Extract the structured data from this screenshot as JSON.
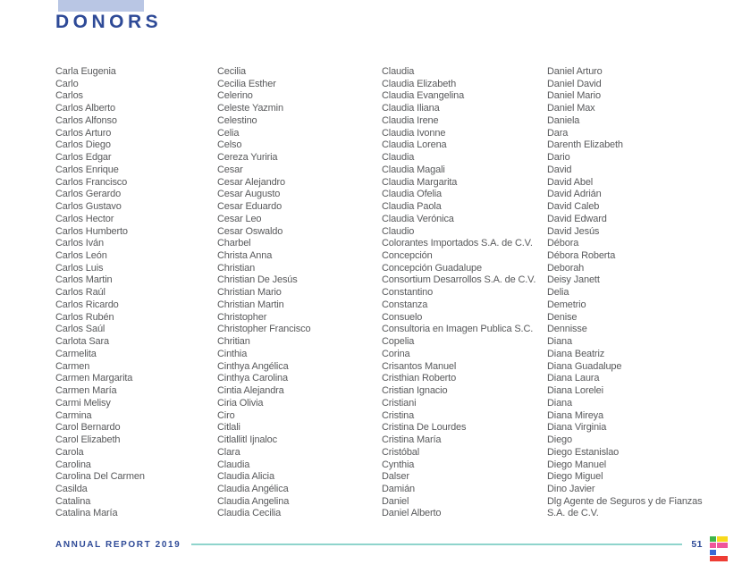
{
  "header": {
    "title": "DONORS",
    "title_color": "#2e4a97",
    "accent_bar_color": "#b9c6e4"
  },
  "text_color": "#58595b",
  "columns": [
    {
      "names": [
        "Carla Eugenia",
        "Carlo",
        "Carlos",
        "Carlos Alberto",
        "Carlos Alfonso",
        "Carlos Arturo",
        "Carlos Diego",
        "Carlos Edgar",
        "Carlos Enrique",
        "Carlos Francisco",
        "Carlos Gerardo",
        "Carlos Gustavo",
        "Carlos Hector",
        "Carlos Humberto",
        "Carlos Iván",
        "Carlos León",
        "Carlos Luis",
        "Carlos Martin",
        "Carlos Raúl",
        "Carlos Ricardo",
        "Carlos Rubén",
        "Carlos Saúl",
        "Carlota Sara",
        "Carmelita",
        "Carmen",
        "Carmen Margarita",
        "Carmen María",
        "Carmi Melisy",
        "Carmina",
        "Carol Bernardo",
        "Carol Elizabeth",
        "Carola",
        "Carolina",
        "Carolina Del Carmen",
        "Casilda",
        "Catalina",
        "Catalina María"
      ]
    },
    {
      "names": [
        "Cecilia",
        "Cecilia Esther",
        "Celerino",
        "Celeste Yazmin",
        "Celestino",
        "Celia",
        "Celso",
        "Cereza Yuriria",
        "Cesar",
        "Cesar Alejandro",
        "Cesar Augusto",
        "Cesar Eduardo",
        "Cesar Leo",
        "Cesar Oswaldo",
        "Charbel",
        "Christa Anna",
        "Christian",
        "Christian De Jesús",
        "Christian Mario",
        "Christian Martin",
        "Christopher",
        "Christopher Francisco",
        "Chritian",
        "Cinthia",
        "Cinthya Angélica",
        "Cinthya Carolina",
        "Cintia Alejandra",
        "Ciria Olivia",
        "Ciro",
        "Citlali",
        "Citlallitl Ijnaloc",
        "Clara",
        "Claudia",
        "Claudia Alicia",
        "Claudia Angélica",
        "Claudia Angelina",
        "Claudia Cecilia"
      ]
    },
    {
      "names": [
        "Claudia",
        "Claudia Elizabeth",
        "Claudia Evangelina",
        "Claudia Iliana",
        "Claudia Irene",
        "Claudia Ivonne",
        "Claudia Lorena",
        "Claudia",
        "Claudia Magali",
        "Claudia Margarita",
        "Claudia Ofelia",
        "Claudia Paola",
        "Claudia Verónica",
        "Claudio",
        "Colorantes Importados S.A. de C.V.",
        "Concepción",
        "Concepción Guadalupe",
        "Consortium Desarrollos S.A. de C.V.",
        "Constantino",
        "Constanza",
        "Consuelo",
        "Consultoria en Imagen Publica S.C.",
        "Copelia",
        "Corina",
        "Crisantos Manuel",
        "Cristhian Roberto",
        "Cristian Ignacio",
        "Cristiani",
        "Cristina",
        "Cristina De Lourdes",
        "Cristina María",
        "Cristóbal",
        "Cynthia",
        "Dalser",
        "Damián",
        "Daniel",
        "Daniel Alberto"
      ]
    },
    {
      "names": [
        "Daniel Arturo",
        "Daniel David",
        "Daniel Mario",
        "Daniel Max",
        "Daniela",
        "Dara",
        "Darenth Elizabeth",
        "Dario",
        "David",
        "David Abel",
        "David Adrián",
        "David Caleb",
        "David Edward",
        "David Jesús",
        "Débora",
        "Débora Roberta",
        "Deborah",
        "Deisy Janett",
        "Delia",
        "Demetrio",
        "Denise",
        "Dennisse",
        "Diana",
        "Diana Beatriz",
        "Diana Guadalupe",
        "Diana Laura",
        "Diana Lorelei",
        "Diana",
        "Diana Mireya",
        "Diana Virginia",
        "Diego",
        "Diego Estanislao",
        "Diego Manuel",
        "Diego Miguel",
        "Dino Javier",
        "Dlg Agente de Seguros y de Fianzas",
        "S.A. de C.V."
      ]
    }
  ],
  "footer": {
    "report_label": "ANNUAL REPORT 2019",
    "page_number": "51",
    "text_color": "#2e4a97",
    "line_color": "#8fd4cc"
  },
  "logo": {
    "description": "stylized letter E made of colored blocks",
    "segment_colors": {
      "green": "#3eb54a",
      "yellow": "#f8d91c",
      "pink": "#f0559b",
      "blue": "#3a6ad4",
      "red": "#ee3d34"
    }
  }
}
